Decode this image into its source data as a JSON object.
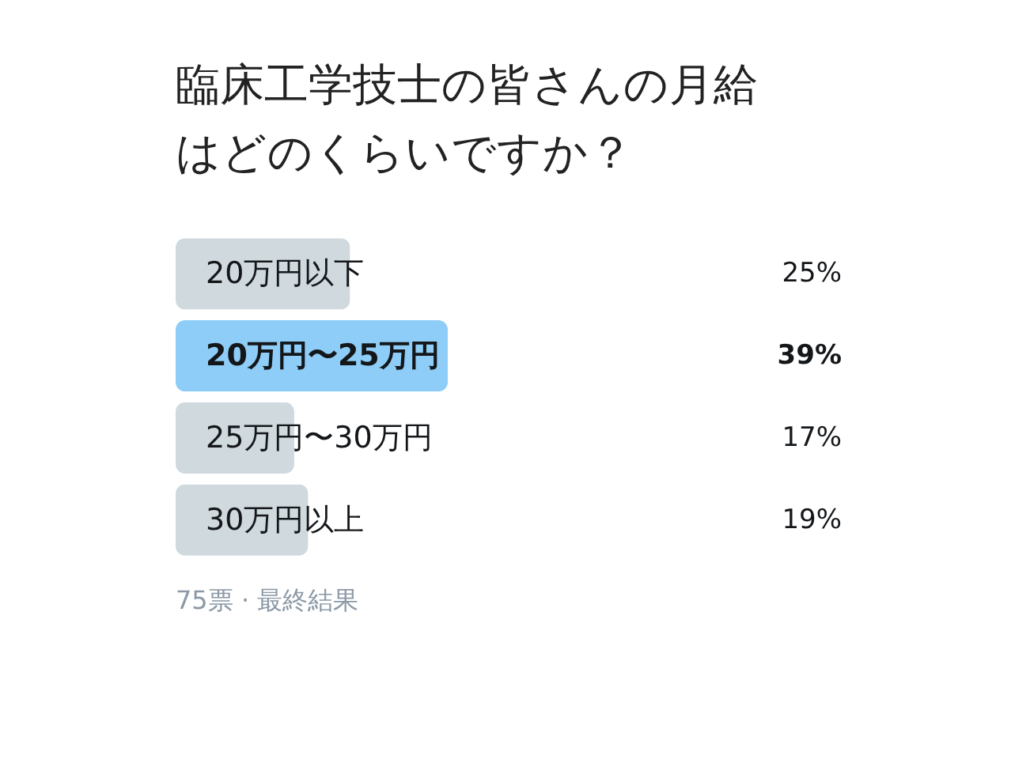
{
  "chart_data": {
    "type": "bar",
    "orientation": "horizontal",
    "title": "臨床工学技士の皆さんの月給はどのくらいですか？",
    "categories": [
      "20万円以下",
      "20万円〜25万円",
      "25万円〜30万円",
      "30万円以上"
    ],
    "values": [
      25,
      39,
      17,
      19
    ],
    "value_labels": [
      "25%",
      "39%",
      "17%",
      "19%"
    ],
    "colors": [
      "#cfd9de",
      "#8ecdf7",
      "#cfd9de",
      "#cfd9de"
    ],
    "annotations": [
      "75票 · 最終結果"
    ]
  }
}
